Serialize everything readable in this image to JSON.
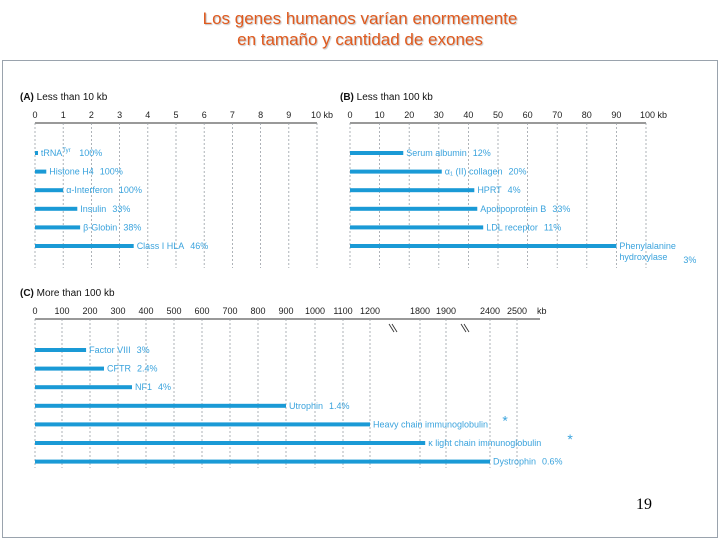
{
  "slide": {
    "title_line1": "Los genes humanos varían enormemente",
    "title_line2": "en tamaño y cantidad de exones",
    "page_number": "19"
  },
  "colors": {
    "bar": "#1a9ad6",
    "label": "#3aa3dd",
    "title": "#e05a1e",
    "grid": "#9aa0a6",
    "star": "#3aa3dd"
  },
  "chart_data": [
    {
      "type": "bar",
      "panel": "(A)",
      "title": "(A) Less than 10 kb",
      "ticks": [
        "0",
        "1",
        "2",
        "3",
        "4",
        "5",
        "6",
        "7",
        "8",
        "9",
        "10 kb"
      ],
      "xlim": [
        0,
        10
      ],
      "unit": "kb",
      "genes": [
        {
          "name": "tRNA",
          "sup": "Tyr",
          "size_kb": 0.1,
          "exon_pct": "100%"
        },
        {
          "name": "Histone H4",
          "size_kb": 0.4,
          "exon_pct": "100%"
        },
        {
          "name": "α-Interferon",
          "size_kb": 1.0,
          "exon_pct": "100%"
        },
        {
          "name": "Insulin",
          "size_kb": 1.5,
          "exon_pct": "33%"
        },
        {
          "name": "β-Globin",
          "size_kb": 1.6,
          "exon_pct": "38%"
        },
        {
          "name": "Class I HLA",
          "size_kb": 3.5,
          "exon_pct": "46%"
        }
      ]
    },
    {
      "type": "bar",
      "panel": "(B)",
      "title": "(B) Less than 100 kb",
      "ticks": [
        "0",
        "10",
        "20",
        "30",
        "40",
        "50",
        "60",
        "70",
        "80",
        "90",
        "100 kb"
      ],
      "xlim": [
        0,
        100
      ],
      "unit": "kb",
      "genes": [
        {
          "name": "Serum albumin",
          "size_kb": 18,
          "exon_pct": "12%"
        },
        {
          "name": "α₁ (II) collagen",
          "size_kb": 31,
          "exon_pct": "20%"
        },
        {
          "name": "HPRT",
          "size_kb": 42,
          "exon_pct": "4%"
        },
        {
          "name": "Apolipoprotein B",
          "size_kb": 43,
          "exon_pct": "33%"
        },
        {
          "name": "LDL receptor",
          "size_kb": 45,
          "exon_pct": "11%"
        },
        {
          "name": "Phenylalanine hydroxylase",
          "size_kb": 90,
          "exon_pct": "3%"
        }
      ]
    },
    {
      "type": "bar",
      "panel": "(C)",
      "title": "(C) More than 100 kb",
      "ticks": [
        "0",
        "100",
        "200",
        "300",
        "400",
        "500",
        "600",
        "700",
        "800",
        "900",
        "1000",
        "1100",
        "1200",
        "1800",
        "1900",
        "2400",
        "2500",
        "kb"
      ],
      "xlim": [
        0,
        2500
      ],
      "unit": "kb",
      "axis_breaks": [
        "1200–1800",
        "1900–2400"
      ],
      "genes": [
        {
          "name": "Factor VIII",
          "size_kb": 186,
          "exon_pct": "3%"
        },
        {
          "name": "CFTR",
          "size_kb": 250,
          "exon_pct": "2.4%"
        },
        {
          "name": "NF1",
          "size_kb": 350,
          "exon_pct": "4%"
        },
        {
          "name": "Utrophin",
          "size_kb": 900,
          "exon_pct": "1.4%"
        },
        {
          "name": "Heavy chain immunoglobulin",
          "size_kb": 1200,
          "exon_pct": "",
          "star": "*"
        },
        {
          "name": "κ light chain immunoglobulin",
          "size_kb": 1820,
          "exon_pct": "",
          "star": "*"
        },
        {
          "name": "Dystrophin",
          "size_kb": 2400,
          "exon_pct": "0.6%"
        }
      ]
    }
  ]
}
